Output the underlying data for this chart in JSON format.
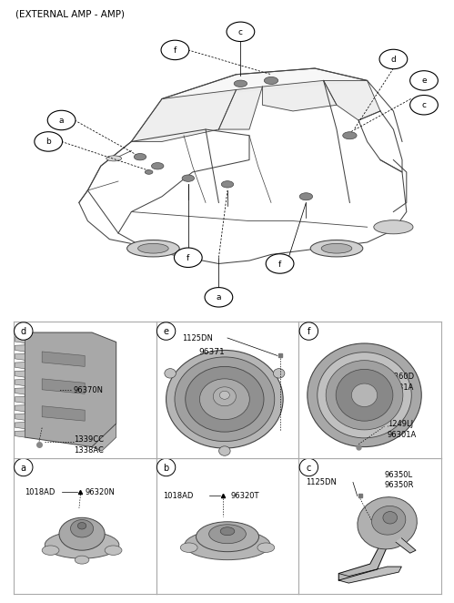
{
  "title": "(EXTERNAL AMP - AMP)",
  "bg_color": "#ffffff",
  "text_color": "#000000",
  "border_color": "#999999",
  "cells": [
    "a",
    "b",
    "c",
    "d",
    "e",
    "f"
  ],
  "cell_a": {
    "part1": "1018AD",
    "part2": "96320N"
  },
  "cell_b": {
    "part1": "1018AD",
    "part2": "96320T"
  },
  "cell_c": {
    "part1": "1125DN",
    "part2_line1": "96350L",
    "part2_line2": "96350R"
  },
  "cell_d": {
    "part1": "96370N",
    "part2_line1": "1339CC",
    "part2_line2": "1338AC"
  },
  "cell_e": {
    "part1": "1125DN",
    "part2": "96371"
  },
  "cell_f": {
    "part1_line1": "96360D",
    "part1_line2": "96331A",
    "part2_line1": "1249LJ",
    "part2_line2": "96301A"
  }
}
